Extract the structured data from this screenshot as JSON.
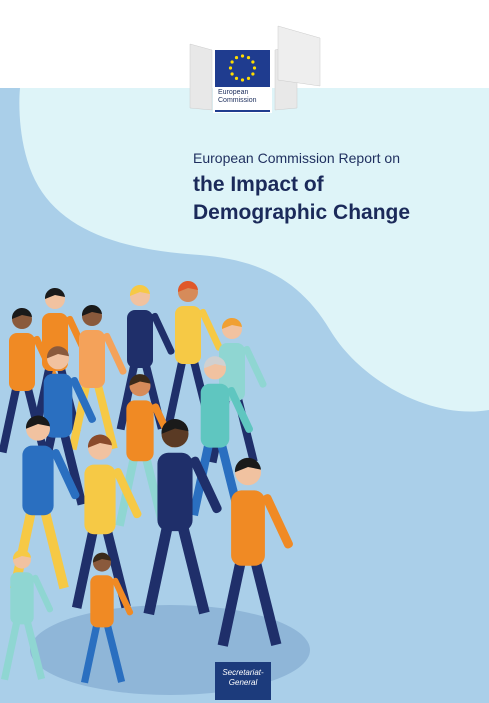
{
  "logo": {
    "text": [
      "European",
      "Commission"
    ]
  },
  "header": {
    "subtitle": "European Commission Report on",
    "title": [
      "the Impact of",
      "Demographic Change"
    ]
  },
  "footer": {
    "label": [
      "Secretariat-",
      "General"
    ]
  }
}
